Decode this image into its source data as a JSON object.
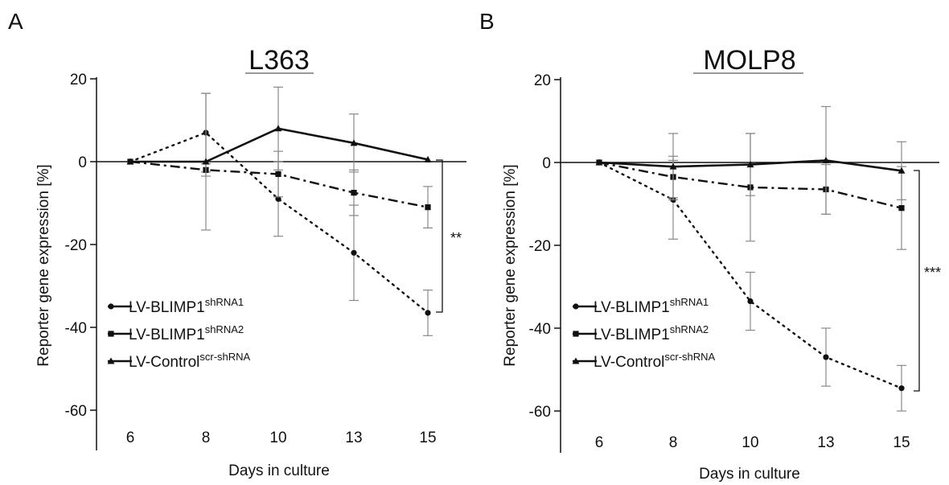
{
  "chart_data": [
    {
      "type": "line",
      "panel_label": "A",
      "title": "L363",
      "xlabel": "Days in culture",
      "ylabel": "Reporter gene expression [%]",
      "categories": [
        "6",
        "8",
        "10",
        "13",
        "15"
      ],
      "yticks": [
        "20",
        "0",
        "-20",
        "-40",
        "-60"
      ],
      "ylim": [
        -70,
        20
      ],
      "significance": "**",
      "legend_position": "lower-left",
      "series": [
        {
          "base": "LV-BLIMP1",
          "sup": "shRNA1",
          "style": "dotted",
          "marker": "circle",
          "values": [
            0,
            7,
            -9,
            -22,
            -36.5
          ],
          "errors": [
            0,
            9.5,
            9,
            11.5,
            5.5
          ]
        },
        {
          "base": "LV-BLIMP1",
          "sup": "shRNA2",
          "style": "dashdot",
          "marker": "square",
          "values": [
            0,
            -2,
            -3,
            -7.5,
            -11
          ],
          "errors": [
            0,
            1.5,
            5.5,
            5.5,
            5
          ]
        },
        {
          "base": "LV-Control",
          "sup": "scr-shRNA",
          "style": "solid",
          "marker": "triangle",
          "values": [
            0,
            0,
            8,
            4.5,
            0.5
          ],
          "errors": [
            0,
            16.5,
            10,
            7,
            0
          ]
        }
      ]
    },
    {
      "type": "line",
      "panel_label": "B",
      "title": "MOLP8",
      "xlabel": "Days in culture",
      "ylabel": "Reporter gene expression [%]",
      "categories": [
        "6",
        "8",
        "10",
        "13",
        "15"
      ],
      "yticks": [
        "20",
        "0",
        "-20",
        "-40",
        "-60"
      ],
      "ylim": [
        -70,
        20
      ],
      "significance": "***",
      "legend_position": "lower-left",
      "series": [
        {
          "base": "LV-BLIMP1",
          "sup": "shRNA1",
          "style": "dotted",
          "marker": "circle",
          "values": [
            0,
            -9,
            -33.5,
            -47,
            -54.5
          ],
          "errors": [
            0,
            9.5,
            7,
            7,
            5.5
          ]
        },
        {
          "base": "LV-BLIMP1",
          "sup": "shRNA2",
          "style": "dashdot",
          "marker": "square",
          "values": [
            0,
            -3.5,
            -6,
            -6.5,
            -11
          ],
          "errors": [
            0,
            5,
            13,
            6,
            10
          ]
        },
        {
          "base": "LV-Control",
          "sup": "scr-shRNA",
          "style": "solid",
          "marker": "triangle",
          "values": [
            0,
            -1,
            -0.5,
            0.5,
            -2
          ],
          "errors": [
            0,
            8,
            7.5,
            13,
            7
          ]
        }
      ]
    }
  ]
}
